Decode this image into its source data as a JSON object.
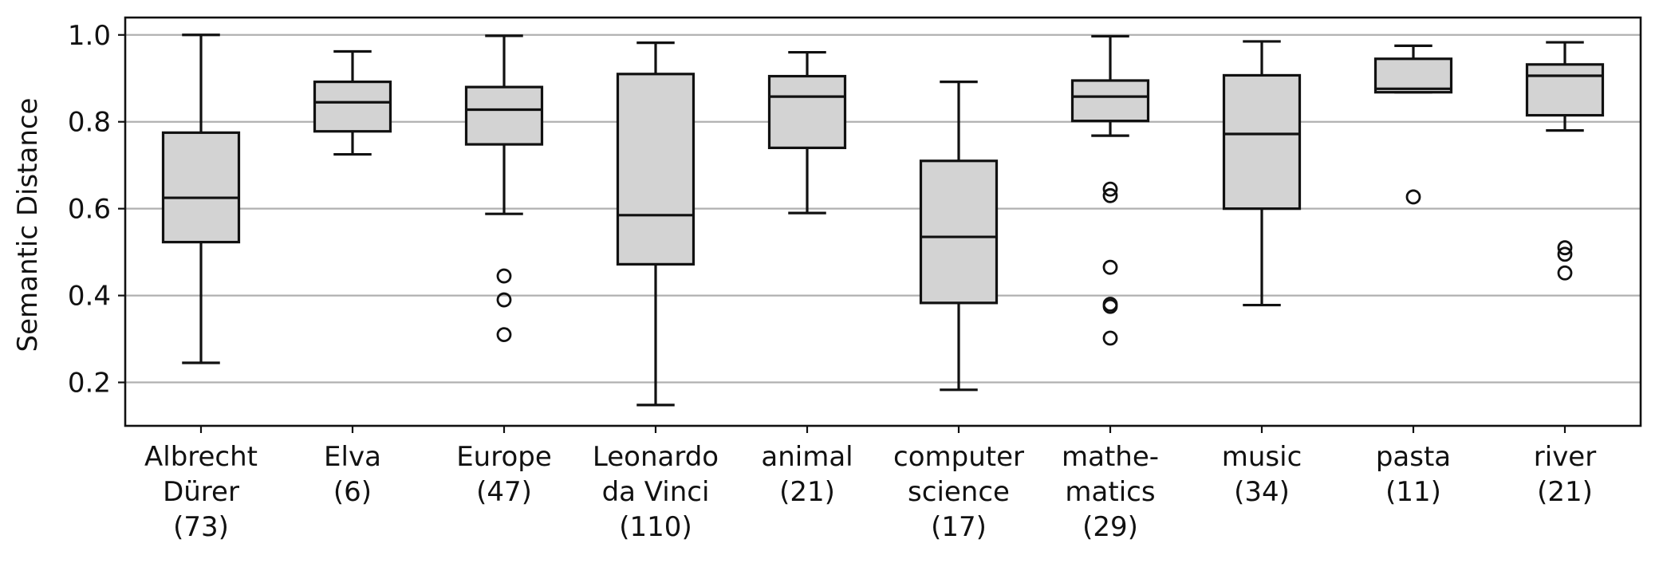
{
  "chart_data": {
    "type": "box",
    "title": "",
    "xlabel": "",
    "ylabel": "Semantic Distance",
    "ylim": [
      0.1,
      1.04
    ],
    "yticks": [
      0.2,
      0.4,
      0.6,
      0.8,
      1.0
    ],
    "ytick_labels": [
      "0.2",
      "0.4",
      "0.6",
      "0.8",
      "1.0"
    ],
    "grid": "horizontal",
    "box_color": "#d3d3d3",
    "categories": [
      {
        "label_lines": [
          "Albrecht",
          "Dürer",
          "(73)"
        ],
        "whisker_low": 0.245,
        "q1": 0.523,
        "median": 0.625,
        "q3": 0.775,
        "whisker_high": 1.0,
        "outliers": []
      },
      {
        "label_lines": [
          "Elva",
          "(6)"
        ],
        "whisker_low": 0.725,
        "q1": 0.778,
        "median": 0.845,
        "q3": 0.892,
        "whisker_high": 0.962,
        "outliers": []
      },
      {
        "label_lines": [
          "Europe",
          "(47)"
        ],
        "whisker_low": 0.588,
        "q1": 0.748,
        "median": 0.828,
        "q3": 0.88,
        "whisker_high": 0.998,
        "outliers": [
          0.445,
          0.39,
          0.31
        ]
      },
      {
        "label_lines": [
          "Leonardo",
          "da Vinci",
          "(110)"
        ],
        "whisker_low": 0.148,
        "q1": 0.472,
        "median": 0.585,
        "q3": 0.91,
        "whisker_high": 0.982,
        "outliers": []
      },
      {
        "label_lines": [
          "animal",
          "(21)"
        ],
        "whisker_low": 0.59,
        "q1": 0.74,
        "median": 0.858,
        "q3": 0.905,
        "whisker_high": 0.96,
        "outliers": []
      },
      {
        "label_lines": [
          "computer",
          "science",
          "(17)"
        ],
        "whisker_low": 0.183,
        "q1": 0.383,
        "median": 0.535,
        "q3": 0.71,
        "whisker_high": 0.892,
        "outliers": []
      },
      {
        "label_lines": [
          "mathe-",
          "matics",
          "(29)"
        ],
        "whisker_low": 0.768,
        "q1": 0.802,
        "median": 0.858,
        "q3": 0.895,
        "whisker_high": 0.997,
        "outliers": [
          0.645,
          0.63,
          0.465,
          0.38,
          0.375,
          0.302
        ]
      },
      {
        "label_lines": [
          "music",
          "(34)"
        ],
        "whisker_low": 0.378,
        "q1": 0.6,
        "median": 0.772,
        "q3": 0.907,
        "whisker_high": 0.985,
        "outliers": []
      },
      {
        "label_lines": [
          "pasta",
          "(11)"
        ],
        "whisker_low": 0.868,
        "q1": 0.868,
        "median": 0.876,
        "q3": 0.945,
        "whisker_high": 0.975,
        "outliers": [
          0.627
        ]
      },
      {
        "label_lines": [
          "river",
          "(21)"
        ],
        "whisker_low": 0.78,
        "q1": 0.815,
        "median": 0.906,
        "q3": 0.932,
        "whisker_high": 0.983,
        "outliers": [
          0.51,
          0.495,
          0.452
        ]
      }
    ]
  }
}
